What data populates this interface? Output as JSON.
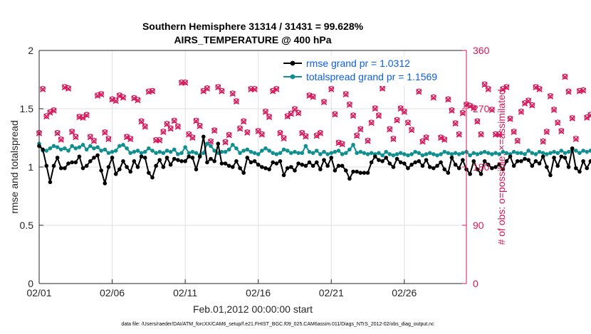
{
  "chart_data": {
    "type": "line",
    "title": "Southern Hemisphere 31314 / 31431 = 99.628%",
    "subtitle": "AIRS_TEMPERATURE @ 400 hPa",
    "xlabel": "Feb.01,2012 00:00:00 start",
    "ylabel": "rmse and totalspread",
    "ylabel_right": "# of obs: o=possible; ×=assimilated",
    "footnote": "data file: /Users/raeder/DAI/ATM_forcXX/CAM6_setup/f.e21.FHIST_BGC.f09_025.CAM6assim.011/Diags_NTrS_2012-02/obs_diag_output.nc",
    "xlim": [
      0,
      29.25
    ],
    "ylim": [
      0,
      2
    ],
    "ylim_right": [
      0,
      360
    ],
    "xticks": [
      0,
      5,
      10,
      15,
      20,
      25
    ],
    "xtick_labels": [
      "02/01",
      "02/06",
      "02/11",
      "02/16",
      "02/21",
      "02/26"
    ],
    "yticks": [
      0,
      0.5,
      1,
      1.5,
      2
    ],
    "ytick_labels": [
      "0",
      "0.5",
      "1",
      "1.5",
      "2"
    ],
    "yticks_right": [
      0,
      90,
      180,
      270,
      360
    ],
    "ytick_labels_right": [
      "0",
      "90",
      "180",
      "270",
      "360"
    ],
    "legend": [
      "rmse grand pr = 1.0312",
      "totalspread grand pr = 1.1569"
    ],
    "legend_position": "top-right",
    "grid": true,
    "colors": {
      "rmse": "#000000",
      "spread": "#0f8f8f",
      "obs": "#d6165a",
      "tick": "#262626",
      "grid": "#dfdfdf"
    },
    "step_days": 0.25,
    "series": [
      {
        "name": "rmse",
        "axis": "left",
        "values": [
          1.18,
          1.15,
          1.01,
          0.87,
          1.01,
          1.08,
          0.99,
          0.99,
          1.03,
          1.04,
          1.04,
          1.09,
          0.99,
          1.01,
          1.05,
          1.08,
          1.1,
          0.97,
          0.86,
          1.0,
          1.08,
          0.94,
          0.98,
          1.05,
          1.0,
          0.96,
          1.05,
          1.0,
          1.09,
          1.08,
          0.95,
          0.91,
          1.01,
          1.06,
          1.0,
          1.08,
          1.02,
          1.07,
          1.06,
          1.05,
          1.05,
          1.09,
          1.08,
          0.98,
          1.09,
          1.26,
          1.04,
          1.07,
          1.05,
          1.2,
          1.03,
          1.03,
          1.01,
          1.0,
          1.05,
          0.99,
          0.95,
          1.08,
          1.04,
          1.05,
          1.02,
          1.0,
          0.99,
          0.98,
          1.04,
          1.03,
          1.05,
          0.93,
          0.99,
          1.0,
          0.97,
          1.03,
          1.02,
          1.01,
          1.04,
          1.01,
          1.04,
          0.98,
          1.06,
          1.01,
          1.08,
          0.97,
          1.01,
          1.01,
          0.97,
          0.9,
          0.96,
          0.96,
          0.95,
          0.95,
          0.95,
          1.04,
          1.09,
          1.06,
          1.05,
          1.08,
          1.03,
          1.0,
          1.07,
          1.04,
          1.03,
          0.99,
          1.02,
          1.04,
          1.05,
          1.01,
          1.06,
          1.0,
          0.99,
          1.01,
          1.04,
          0.98,
          0.95,
          1.08,
          1.02,
          0.99,
          1.06,
          0.98,
          0.94,
          1.05,
          0.98,
          0.94,
          1.05,
          1.02,
          0.99,
          1.0,
          1.02,
          0.98,
          1.05,
          1.09,
          1.01,
          1.05,
          1.05,
          1.07,
          1.06,
          1.01,
          1.05,
          1.03,
          1.09,
          1.0,
          0.93,
          1.08,
          1.01,
          1.09,
          1.08,
          1.0,
          1.16,
          0.99,
          0.96,
          1.05,
          0.99,
          1.05,
          1.03,
          1.09,
          1.11,
          1.16,
          1.03,
          1.08,
          1.08,
          1.1,
          1.09,
          1.14,
          1.08,
          1.08,
          1.09,
          1.09,
          1.22
        ]
      },
      {
        "name": "totalspread",
        "axis": "left",
        "values": [
          1.2,
          1.14,
          1.14,
          1.16,
          1.18,
          1.17,
          1.15,
          1.16,
          1.14,
          1.18,
          1.16,
          1.17,
          1.19,
          1.15,
          1.18,
          1.16,
          1.17,
          1.14,
          1.15,
          1.12,
          1.13,
          1.14,
          1.18,
          1.19,
          1.16,
          1.12,
          1.13,
          1.14,
          1.12,
          1.13,
          1.16,
          1.14,
          1.12,
          1.13,
          1.12,
          1.14,
          1.13,
          1.15,
          1.11,
          1.12,
          1.17,
          1.12,
          1.13,
          1.12,
          1.1,
          1.12,
          1.2,
          1.18,
          1.14,
          1.12,
          1.13,
          1.13,
          1.15,
          1.19,
          1.16,
          1.12,
          1.14,
          1.15,
          1.13,
          1.12,
          1.11,
          1.14,
          1.16,
          1.14,
          1.12,
          1.11,
          1.12,
          1.15,
          1.14,
          1.12,
          1.13,
          1.12,
          1.12,
          1.18,
          1.13,
          1.12,
          1.14,
          1.11,
          1.13,
          1.11,
          1.12,
          1.13,
          1.14,
          1.11,
          1.12,
          1.15,
          1.19,
          1.12,
          1.13,
          1.12,
          1.11,
          1.12,
          1.11,
          1.12,
          1.1,
          1.13,
          1.11,
          1.1,
          1.11,
          1.12,
          1.11,
          1.1,
          1.11,
          1.13,
          1.12,
          1.1,
          1.11,
          1.12,
          1.11,
          1.1,
          1.11,
          1.13,
          1.12,
          1.11,
          1.12,
          1.11,
          1.12,
          1.13,
          1.1,
          1.12,
          1.11,
          1.12,
          1.13,
          1.12,
          1.11,
          1.12,
          1.11,
          1.13,
          1.12,
          1.11,
          1.13,
          1.12,
          1.12,
          1.11,
          1.14,
          1.12,
          1.11,
          1.13,
          1.12,
          1.11,
          1.12,
          1.13,
          1.12,
          1.14,
          1.12,
          1.13,
          1.15,
          1.14,
          1.12,
          1.14,
          1.13,
          1.14,
          1.16,
          1.14,
          1.15,
          1.13,
          1.14,
          1.17,
          1.13,
          1.19,
          1.2,
          1.16,
          1.15,
          1.14,
          1.15,
          1.17,
          1.13,
          1.14,
          1.21,
          1.19,
          1.2,
          1.25,
          1.21
        ]
      },
      {
        "name": "obs_assimilated",
        "axis": "right",
        "values": [
          232,
          300,
          258,
          264,
          267,
          232,
          222,
          303,
          301,
          234,
          226,
          257,
          256,
          260,
          226,
          220,
          290,
          292,
          233,
          223,
          284,
          282,
          290,
          287,
          226,
          223,
          286,
          283,
          250,
          242,
          296,
          297,
          221,
          221,
          234,
          246,
          239,
          251,
          242,
          310,
          310,
          230,
          225,
          251,
          243,
          297,
          301,
          219,
          236,
          303,
          297,
          218,
          229,
          293,
          281,
          239,
          250,
          233,
          300,
          300,
          235,
          230,
          265,
          257,
          297,
          300,
          232,
          224,
          258,
          262,
          269,
          263,
          232,
          227,
          290,
          288,
          228,
          232,
          280,
          316,
          300,
          261,
          217,
          215,
          292,
          276,
          259,
          228,
          238,
          325,
          220,
          248,
          270,
          259,
          301,
          309,
          238,
          223,
          252,
          270,
          265,
          248,
          237,
          312,
          296,
          219,
          225,
          318,
          287,
          314,
          225,
          222,
          284,
          267,
          247,
          230,
          263,
          276,
          274,
          271,
          250,
          230,
          307,
          300,
          268,
          230,
          230,
          300,
          303,
          254,
          234,
          220,
          265,
          278,
          282,
          275,
          303,
          300,
          219,
          234,
          289,
          268,
          248,
          235,
          319,
          296,
          255,
          223,
          297,
          298,
          256,
          260,
          315,
          292,
          298,
          232,
          252,
          255,
          265,
          270,
          280,
          283,
          280,
          278,
          272,
          286,
          280,
          281,
          272,
          292,
          278,
          278,
          301,
          302,
          297
        ]
      },
      {
        "name": "obs_possible",
        "axis": "right",
        "values": [
          233,
          301,
          259,
          265,
          268,
          233,
          223,
          304,
          302,
          235,
          227,
          258,
          257,
          261,
          227,
          221,
          291,
          293,
          234,
          224,
          285,
          283,
          291,
          288,
          227,
          224,
          287,
          284,
          251,
          243,
          297,
          298,
          222,
          222,
          235,
          247,
          240,
          252,
          243,
          311,
          311,
          231,
          226,
          252,
          244,
          298,
          302,
          220,
          237,
          304,
          298,
          219,
          230,
          294,
          282,
          240,
          251,
          234,
          301,
          301,
          236,
          231,
          266,
          258,
          298,
          301,
          233,
          225,
          259,
          263,
          270,
          264,
          233,
          228,
          291,
          289,
          229,
          233,
          281,
          317,
          301,
          262,
          218,
          216,
          293,
          277,
          260,
          229,
          239,
          326,
          221,
          249,
          271,
          260,
          302,
          310,
          239,
          224,
          253,
          271,
          266,
          249,
          238,
          313,
          297,
          220,
          226,
          319,
          288,
          315,
          226,
          223,
          285,
          268,
          248,
          231,
          264,
          277,
          275,
          272,
          251,
          231,
          308,
          301,
          269,
          231,
          231,
          301,
          304,
          255,
          235,
          221,
          266,
          279,
          283,
          276,
          304,
          301,
          220,
          235,
          290,
          269,
          249,
          236,
          320,
          297,
          256,
          224,
          298,
          299,
          257,
          261,
          316,
          293,
          299,
          233,
          253,
          256,
          266,
          271,
          281,
          284,
          281,
          279,
          273,
          287,
          281,
          282,
          273,
          293,
          279,
          279,
          302,
          303,
          298
        ]
      }
    ]
  }
}
